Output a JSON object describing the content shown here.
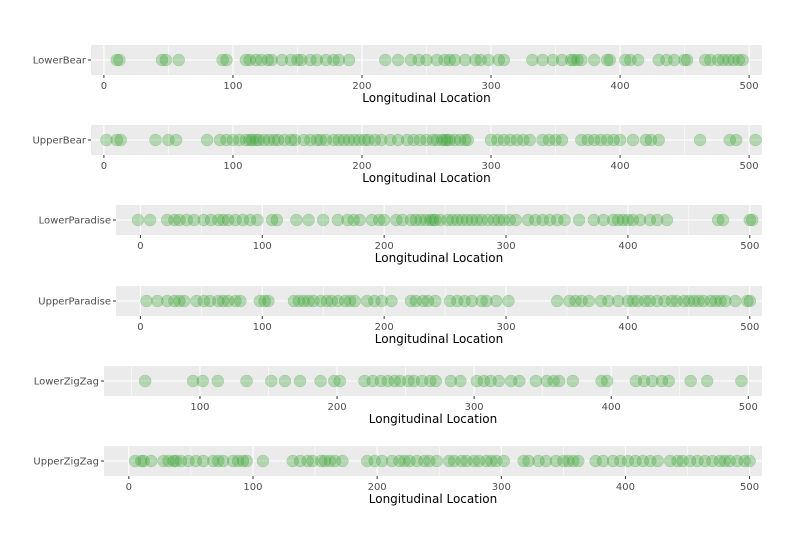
{
  "colors": {
    "point": "#33a02c",
    "panel": "#ebebeb",
    "grid": "#ffffff"
  },
  "chart_data": [
    {
      "type": "scatter",
      "category": "LowerBear",
      "xlabel": "Longitudinal Location",
      "xlim": [
        -10,
        510
      ],
      "xticks": [
        0,
        100,
        200,
        300,
        400,
        500
      ],
      "x": [
        10,
        12,
        45,
        48,
        58,
        92,
        95,
        110,
        113,
        118,
        122,
        127,
        130,
        138,
        145,
        150,
        153,
        160,
        165,
        172,
        178,
        182,
        190,
        218,
        228,
        238,
        244,
        250,
        258,
        264,
        268,
        272,
        280,
        288,
        292,
        298,
        306,
        310,
        332,
        340,
        348,
        355,
        362,
        364,
        367,
        370,
        380,
        390,
        392,
        404,
        408,
        414,
        430,
        436,
        442,
        450,
        452,
        466,
        470,
        476,
        480,
        484,
        488,
        492,
        495
      ]
    },
    {
      "type": "scatter",
      "category": "UpperBear",
      "xlabel": "Longitudinal Location",
      "xlim": [
        -10,
        510
      ],
      "xticks": [
        0,
        100,
        200,
        300,
        400,
        500
      ],
      "x": [
        2,
        10,
        13,
        40,
        50,
        56,
        80,
        90,
        95,
        100,
        105,
        110,
        113,
        115,
        118,
        120,
        124,
        128,
        132,
        135,
        140,
        145,
        148,
        155,
        160,
        165,
        168,
        172,
        178,
        182,
        186,
        190,
        194,
        198,
        202,
        205,
        210,
        215,
        222,
        228,
        235,
        240,
        245,
        250,
        255,
        258,
        262,
        264,
        266,
        268,
        272,
        276,
        280,
        282,
        300,
        305,
        310,
        315,
        320,
        325,
        330,
        340,
        345,
        350,
        355,
        370,
        375,
        380,
        385,
        390,
        395,
        400,
        410,
        420,
        424,
        430,
        462,
        485,
        490,
        505
      ]
    },
    {
      "type": "scatter",
      "category": "LowerParadise",
      "xlabel": "Longitudinal Location",
      "xlim": [
        -20,
        510
      ],
      "xticks": [
        0,
        100,
        200,
        300,
        400,
        500
      ],
      "x": [
        -2,
        8,
        22,
        28,
        32,
        38,
        44,
        52,
        58,
        64,
        68,
        72,
        78,
        84,
        90,
        96,
        108,
        112,
        128,
        138,
        150,
        162,
        170,
        175,
        180,
        190,
        196,
        200,
        210,
        215,
        222,
        226,
        230,
        234,
        238,
        240,
        242,
        246,
        252,
        256,
        260,
        264,
        268,
        272,
        276,
        280,
        285,
        290,
        294,
        298,
        303,
        308,
        318,
        324,
        330,
        336,
        342,
        348,
        360,
        372,
        380,
        388,
        392,
        396,
        400,
        404,
        410,
        418,
        424,
        432,
        474,
        478,
        500,
        502
      ]
    },
    {
      "type": "scatter",
      "category": "UpperParadise",
      "xlabel": "Longitudinal Location",
      "xlim": [
        -20,
        510
      ],
      "xticks": [
        0,
        100,
        200,
        300,
        400,
        500
      ],
      "x": [
        5,
        14,
        22,
        28,
        32,
        36,
        46,
        52,
        57,
        64,
        68,
        72,
        78,
        82,
        98,
        102,
        105,
        126,
        130,
        134,
        138,
        142,
        148,
        153,
        157,
        162,
        168,
        172,
        176,
        186,
        192,
        198,
        206,
        222,
        226,
        232,
        236,
        242,
        254,
        260,
        266,
        272,
        280,
        284,
        292,
        302,
        342,
        352,
        357,
        362,
        368,
        378,
        384,
        392,
        400,
        404,
        408,
        414,
        418,
        424,
        430,
        436,
        440,
        446,
        450,
        454,
        458,
        462,
        468,
        472,
        476,
        480,
        488,
        498,
        500
      ]
    },
    {
      "type": "scatter",
      "category": "LowerZigZag",
      "xlabel": "Longitudinal Location",
      "xlim": [
        30,
        510
      ],
      "xticks": [
        100,
        200,
        300,
        400,
        500
      ],
      "x": [
        60,
        95,
        102,
        113,
        134,
        152,
        162,
        173,
        188,
        198,
        202,
        220,
        226,
        232,
        237,
        242,
        246,
        252,
        256,
        262,
        268,
        272,
        283,
        290,
        302,
        307,
        312,
        318,
        327,
        333,
        345,
        353,
        358,
        362,
        372,
        393,
        397,
        418,
        424,
        430,
        437,
        442,
        458,
        470,
        495
      ]
    },
    {
      "type": "scatter",
      "category": "UpperZigZag",
      "xlabel": "Longitudinal Location",
      "xlim": [
        -20,
        510
      ],
      "xticks": [
        0,
        100,
        200,
        300,
        400,
        500
      ],
      "x": [
        5,
        10,
        12,
        18,
        28,
        32,
        36,
        38,
        42,
        48,
        54,
        60,
        68,
        72,
        76,
        84,
        88,
        92,
        95,
        108,
        132,
        138,
        144,
        148,
        155,
        158,
        162,
        166,
        172,
        192,
        198,
        204,
        212,
        218,
        222,
        226,
        232,
        238,
        242,
        248,
        258,
        262,
        268,
        272,
        278,
        282,
        288,
        292,
        296,
        302,
        318,
        322,
        330,
        336,
        344,
        350,
        354,
        358,
        362,
        376,
        382,
        390,
        396,
        402,
        408,
        414,
        420,
        426,
        436,
        442,
        446,
        452,
        458,
        464,
        470,
        476,
        480,
        484,
        490,
        496,
        500
      ]
    }
  ]
}
